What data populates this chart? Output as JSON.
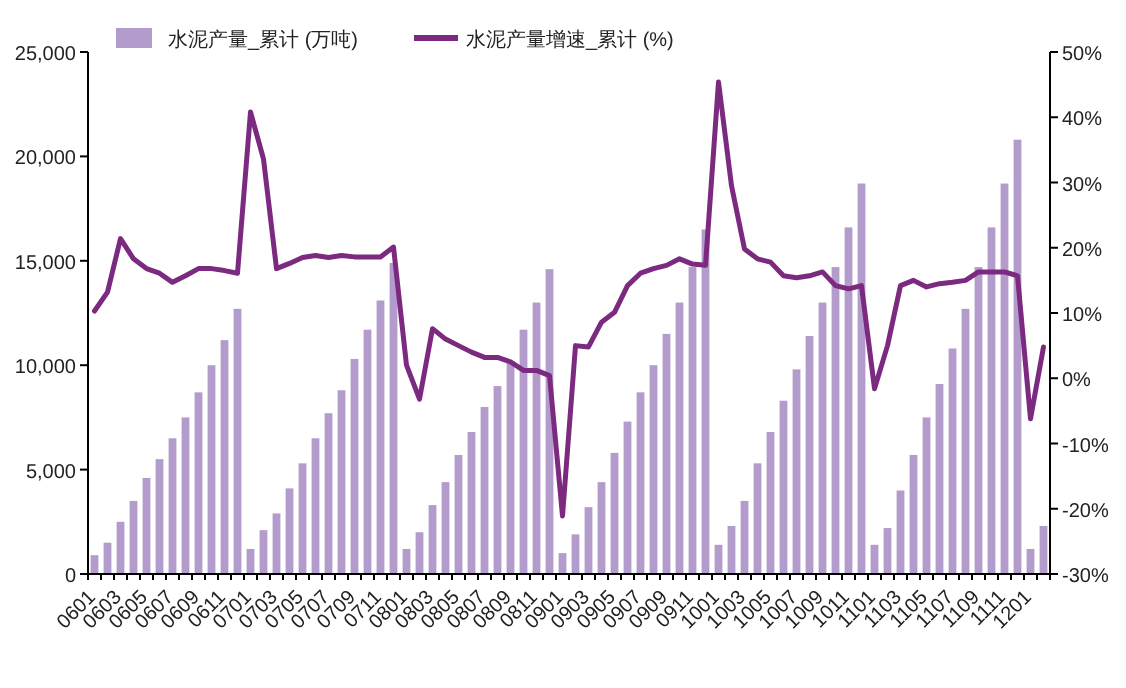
{
  "chart_data": {
    "type": "bar",
    "categories": [
      "0601",
      null,
      "0603",
      null,
      "0605",
      null,
      "0607",
      null,
      "0609",
      null,
      "0611",
      null,
      "0701",
      null,
      "0703",
      null,
      "0705",
      null,
      "0707",
      null,
      "0709",
      null,
      "0711",
      null,
      "0801",
      null,
      "0803",
      null,
      "0805",
      null,
      "0807",
      null,
      "0809",
      null,
      "0811",
      null,
      "0901",
      null,
      "0903",
      null,
      "0905",
      null,
      "0907",
      null,
      "0909",
      null,
      "0911",
      null,
      "1001",
      null,
      "1003",
      null,
      "1005",
      null,
      "1007",
      null,
      "1009",
      null,
      "1011",
      null,
      "1101",
      null,
      "1103",
      null,
      "1105",
      null,
      "1107",
      null,
      "1109",
      null,
      "1111",
      null,
      "1201",
      null
    ],
    "series": [
      {
        "name": "水泥产量_累计 (万吨)",
        "color": "#b39ccc",
        "values": [
          900,
          1500,
          2500,
          3500,
          4600,
          5500,
          6500,
          7500,
          8700,
          10000,
          11200,
          12700,
          1200,
          2100,
          2900,
          4100,
          5300,
          6500,
          7700,
          8800,
          10300,
          11700,
          13100,
          14900,
          1200,
          2000,
          3300,
          4400,
          5700,
          6800,
          8000,
          9000,
          10200,
          11700,
          13000,
          14600,
          1000,
          1900,
          3200,
          4400,
          5800,
          7300,
          8700,
          10000,
          11500,
          13000,
          14700,
          16500,
          1400,
          2300,
          3500,
          5300,
          6800,
          8300,
          9800,
          11400,
          13000,
          14700,
          16600,
          18700,
          1400,
          2200,
          4000,
          5700,
          7500,
          9100,
          10800,
          12700,
          14700,
          16600,
          18700,
          20800,
          1200,
          2300
        ]
      },
      {
        "name": "水泥产量增速_累计 (%)",
        "type": "line",
        "axis": "y2",
        "color": "#7b2a7f",
        "values": [
          10.3,
          13.2,
          21.4,
          18.3,
          16.8,
          16.1,
          14.7,
          15.7,
          16.8,
          16.8,
          16.5,
          16.1,
          40.8,
          33.6,
          16.8,
          17.6,
          18.5,
          18.8,
          18.5,
          18.8,
          18.6,
          18.6,
          18.6,
          20.1,
          2.0,
          -3.2,
          7.6,
          6.0,
          5.0,
          4.0,
          3.2,
          3.2,
          2.5,
          1.2,
          1.2,
          0.4,
          -21.1,
          5.0,
          4.8,
          8.6,
          10.1,
          14.2,
          16.1,
          16.8,
          17.3,
          18.3,
          17.5,
          17.3,
          45.4,
          29.5,
          19.8,
          18.3,
          17.8,
          15.7,
          15.4,
          15.7,
          16.3,
          14.2,
          13.7,
          14.2,
          -1.6,
          5.0,
          14.2,
          15.0,
          14.0,
          14.5,
          14.7,
          15.0,
          16.3,
          16.3,
          16.3,
          15.7,
          -6.2,
          4.8
        ]
      }
    ],
    "ylim": [
      0,
      25000
    ],
    "yticks": [
      0,
      {
        "value": 5000,
        "label": "5,000"
      },
      {
        "value": 10000,
        "label": "10,000"
      },
      {
        "value": 15000,
        "label": "15,000"
      },
      {
        "value": 20000,
        "label": "20,000"
      },
      {
        "value": 25000,
        "label": "25,000"
      }
    ],
    "y2lim": [
      -30,
      50
    ],
    "y2ticks": [
      {
        "value": -30,
        "label": "-30%"
      },
      {
        "value": -20,
        "label": "-20%"
      },
      {
        "value": -10,
        "label": "-10%"
      },
      {
        "value": 0,
        "label": "0%"
      },
      {
        "value": 10,
        "label": "10%"
      },
      {
        "value": 20,
        "label": "20%"
      },
      {
        "value": 30,
        "label": "30%"
      },
      {
        "value": 40,
        "label": "40%"
      },
      {
        "value": 50,
        "label": "50%"
      }
    ],
    "legend": "top left",
    "grid": false
  }
}
